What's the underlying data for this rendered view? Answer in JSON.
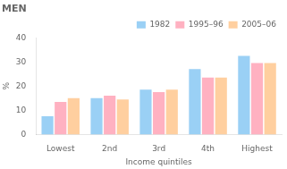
{
  "chart_data": {
    "type": "bar",
    "title": "MEN",
    "xlabel": "Income quintiles",
    "ylabel": "%",
    "categories": [
      "Lowest",
      "2nd",
      "3rd",
      "4th",
      "Highest"
    ],
    "series": [
      {
        "name": "1982",
        "values": [
          7.5,
          15.0,
          18.5,
          27.0,
          32.5
        ]
      },
      {
        "name": "1995–96",
        "values": [
          13.5,
          16.0,
          17.5,
          23.5,
          29.5
        ]
      },
      {
        "name": "2005–06",
        "values": [
          15.0,
          14.5,
          18.5,
          23.5,
          29.5
        ]
      }
    ],
    "ylim": [
      0,
      40
    ],
    "yticks": [
      0,
      10,
      20,
      30,
      40
    ],
    "grid": false,
    "legend": "upper right"
  }
}
